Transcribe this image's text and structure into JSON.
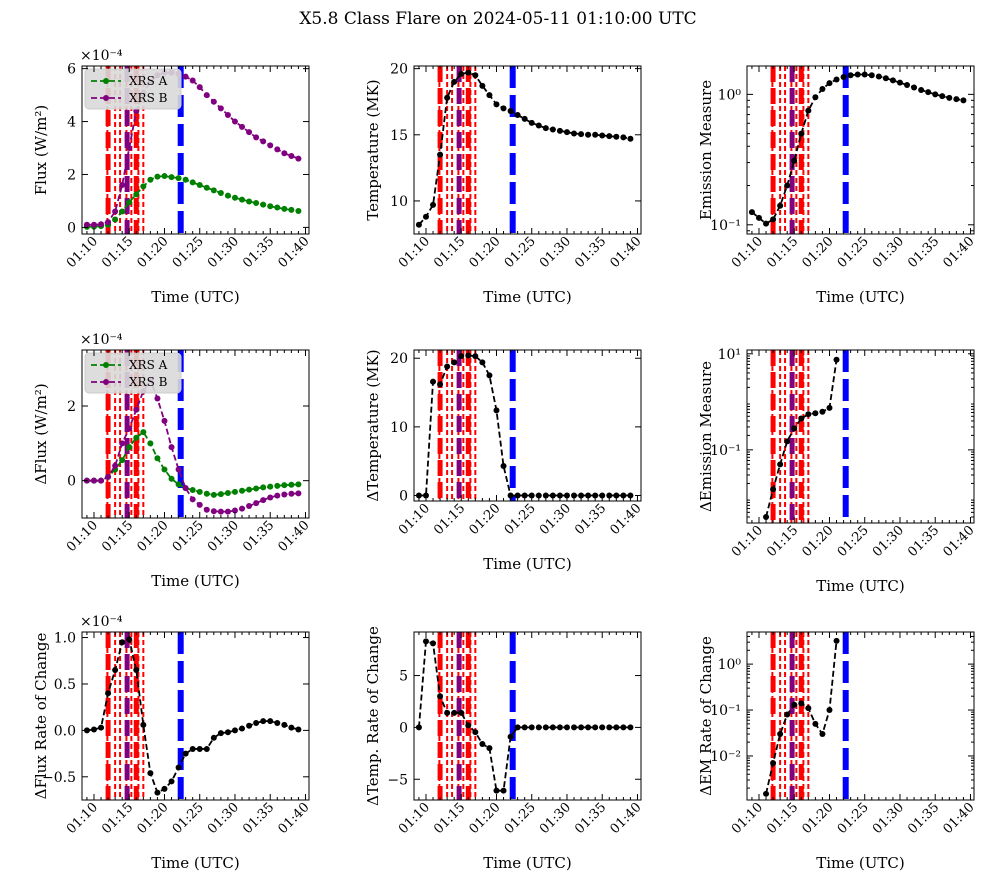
{
  "figure_title": "X5.8 Class Flare on 2024-05-11 01:10:00 UTC",
  "colors": {
    "xrs_a": "#008000",
    "xrs_b": "#800080",
    "black": "#000000",
    "red": "#ff0000",
    "blue": "#0000ff",
    "purple": "#800080"
  },
  "time_ticks": [
    "01:10",
    "01:15",
    "01:20",
    "01:25",
    "01:30",
    "01:35",
    "01:40"
  ],
  "time_tick_minutes": [
    10,
    15,
    20,
    25,
    30,
    35,
    40
  ],
  "xlim_minutes": [
    8.3,
    40.5
  ],
  "event_markers": {
    "red_thick": [
      12.0,
      16.0
    ],
    "red_dotted": [
      11.9,
      13.0,
      13.7,
      14.6,
      15.3,
      16.3,
      17.0
    ],
    "purple_thick": 14.7,
    "blue_thick": 22.3
  },
  "chart_data": [
    {
      "id": "flux",
      "type": "line",
      "scale": "linear",
      "ylabel": "Flux ($W/m^2$)",
      "ylabel_display": "Flux (W/m²)",
      "xlabel": "Time (UTC)",
      "multiplier": "×10⁻⁴",
      "ylim": [
        -0.25,
        6.1
      ],
      "yticks": [
        0,
        2,
        4,
        6
      ],
      "ytick_labels": [
        "0",
        "2",
        "4",
        "6"
      ],
      "legend": {
        "position": "upper-left",
        "entries": [
          "XRS A",
          "XRS B"
        ]
      },
      "series": [
        {
          "name": "XRS A",
          "color": "#008000",
          "x": [
            9,
            10,
            11,
            12,
            13,
            14,
            15,
            16,
            17,
            18,
            19,
            20,
            21,
            22,
            23,
            24,
            25,
            26,
            27,
            28,
            29,
            30,
            31,
            32,
            33,
            34,
            35,
            36,
            37,
            38,
            39
          ],
          "values": [
            0.02,
            0.03,
            0.05,
            0.1,
            0.3,
            0.6,
            0.95,
            1.25,
            1.55,
            1.8,
            1.92,
            1.94,
            1.9,
            1.86,
            1.8,
            1.7,
            1.6,
            1.5,
            1.4,
            1.3,
            1.2,
            1.12,
            1.05,
            0.98,
            0.92,
            0.86,
            0.8,
            0.75,
            0.7,
            0.66,
            0.62
          ]
        },
        {
          "name": "XRS B",
          "color": "#800080",
          "x": [
            9,
            10,
            11,
            12,
            13,
            14,
            15,
            16,
            17,
            18,
            19,
            20,
            21,
            22,
            23,
            24,
            25,
            26,
            27,
            28,
            29,
            30,
            31,
            32,
            33,
            34,
            35,
            36,
            37,
            38,
            39
          ],
          "values": [
            0.1,
            0.1,
            0.12,
            0.2,
            0.6,
            1.6,
            3.0,
            4.4,
            5.1,
            5.5,
            5.75,
            5.85,
            5.85,
            5.8,
            5.7,
            5.55,
            5.3,
            5.0,
            4.75,
            4.5,
            4.25,
            4.0,
            3.8,
            3.6,
            3.4,
            3.25,
            3.1,
            2.95,
            2.8,
            2.7,
            2.6
          ]
        }
      ]
    },
    {
      "id": "temp",
      "type": "line",
      "scale": "linear",
      "ylabel": "Temperature (MK)",
      "xlabel": "Time (UTC)",
      "ylim": [
        7.5,
        20.2
      ],
      "yticks": [
        10,
        15,
        20
      ],
      "ytick_labels": [
        "10",
        "15",
        "20"
      ],
      "series": [
        {
          "name": "Temperature",
          "color": "#000000",
          "x": [
            9,
            10,
            11,
            12,
            13,
            14,
            15,
            16,
            17,
            18,
            19,
            20,
            21,
            22,
            23,
            24,
            25,
            26,
            27,
            28,
            29,
            30,
            31,
            32,
            33,
            34,
            35,
            36,
            37,
            38,
            39
          ],
          "values": [
            8.2,
            8.8,
            9.7,
            13.5,
            17.8,
            19.0,
            19.6,
            19.7,
            19.5,
            18.7,
            18.0,
            17.3,
            17.0,
            16.8,
            16.5,
            16.2,
            15.9,
            15.7,
            15.5,
            15.4,
            15.3,
            15.2,
            15.1,
            15.05,
            15.0,
            15.0,
            14.95,
            14.9,
            14.85,
            14.8,
            14.7
          ]
        }
      ]
    },
    {
      "id": "em",
      "type": "line",
      "scale": "log",
      "ylabel": "Emission Measure",
      "xlabel": "Time (UTC)",
      "ylim": [
        0.085,
        1.65
      ],
      "yticks": [
        0.1,
        1
      ],
      "ytick_labels": [
        "10⁻¹",
        "10⁰"
      ],
      "series": [
        {
          "name": "Emission Measure",
          "color": "#000000",
          "x": [
            9,
            10,
            11,
            12,
            13,
            14,
            15,
            16,
            17,
            18,
            19,
            20,
            21,
            22,
            23,
            24,
            25,
            26,
            27,
            28,
            29,
            30,
            31,
            32,
            33,
            34,
            35,
            36,
            37,
            38,
            39
          ],
          "values": [
            0.125,
            0.113,
            0.102,
            0.11,
            0.14,
            0.2,
            0.31,
            0.5,
            0.75,
            0.95,
            1.1,
            1.22,
            1.3,
            1.36,
            1.4,
            1.42,
            1.42,
            1.4,
            1.37,
            1.33,
            1.28,
            1.23,
            1.18,
            1.13,
            1.08,
            1.04,
            1.0,
            0.97,
            0.94,
            0.92,
            0.9
          ]
        }
      ]
    },
    {
      "id": "dflux",
      "type": "line",
      "scale": "linear",
      "ylabel": "ΔFlux ($W/m^2$)",
      "ylabel_display": "ΔFlux (W/m²)",
      "xlabel": "Time (UTC)",
      "multiplier": "×10⁻⁴",
      "ylim": [
        -1.0,
        3.5
      ],
      "yticks": [
        0,
        2
      ],
      "ytick_labels": [
        "0",
        "2"
      ],
      "legend": {
        "position": "upper-left",
        "entries": [
          "XRS A",
          "XRS B"
        ]
      },
      "series": [
        {
          "name": "XRS A",
          "color": "#008000",
          "x": [
            9,
            10,
            11,
            12,
            13,
            14,
            15,
            16,
            17,
            18,
            19,
            20,
            21,
            22,
            23,
            24,
            25,
            26,
            27,
            28,
            29,
            30,
            31,
            32,
            33,
            34,
            35,
            36,
            37,
            38,
            39
          ],
          "values": [
            0,
            0,
            0,
            0.1,
            0.3,
            0.55,
            0.9,
            1.15,
            1.3,
            1.0,
            0.6,
            0.3,
            0.05,
            -0.1,
            -0.2,
            -0.25,
            -0.3,
            -0.35,
            -0.38,
            -0.36,
            -0.33,
            -0.3,
            -0.27,
            -0.24,
            -0.21,
            -0.18,
            -0.16,
            -0.14,
            -0.12,
            -0.11,
            -0.1
          ]
        },
        {
          "name": "XRS B",
          "color": "#800080",
          "x": [
            9,
            10,
            11,
            12,
            13,
            14,
            15,
            16,
            17,
            18,
            19,
            20,
            21,
            22,
            23,
            24,
            25,
            26,
            27,
            28,
            29,
            30,
            31,
            32,
            33,
            34,
            35,
            36,
            37,
            38,
            39
          ],
          "values": [
            0,
            0,
            0,
            0.1,
            0.4,
            1.0,
            1.4,
            1.9,
            2.4,
            2.7,
            2.2,
            1.6,
            0.9,
            0.3,
            -0.2,
            -0.5,
            -0.65,
            -0.78,
            -0.82,
            -0.83,
            -0.83,
            -0.8,
            -0.75,
            -0.68,
            -0.6,
            -0.52,
            -0.45,
            -0.4,
            -0.37,
            -0.35,
            -0.34
          ]
        }
      ]
    },
    {
      "id": "dtemp",
      "type": "line",
      "scale": "linear",
      "ylabel": "ΔTemperature (MK)",
      "xlabel": "Time (UTC)",
      "ylim": [
        -0.8,
        21.2
      ],
      "yticks": [
        0,
        10,
        20
      ],
      "ytick_labels": [
        "0",
        "10",
        "20"
      ],
      "series": [
        {
          "name": "ΔTemperature",
          "color": "#000000",
          "x": [
            9,
            10,
            11,
            12,
            13,
            14,
            15,
            16,
            17,
            18,
            19,
            20,
            21,
            22,
            23,
            24,
            25,
            26,
            27,
            28,
            29,
            30,
            31,
            32,
            33,
            34,
            35,
            36,
            37,
            38,
            39
          ],
          "values": [
            0,
            0,
            16.6,
            16.2,
            18.8,
            19.4,
            20.3,
            20.4,
            20.3,
            19.4,
            17.5,
            12.4,
            4.3,
            0,
            0,
            0,
            0,
            0,
            0,
            0,
            0,
            0,
            0,
            0,
            0,
            0,
            0,
            0,
            0,
            0,
            0
          ]
        }
      ]
    },
    {
      "id": "dem",
      "type": "line",
      "scale": "log",
      "ylabel": "ΔEmission Measure",
      "xlabel": "Time (UTC)",
      "ylim": [
        0.003,
        12
      ],
      "yticks": [
        0.1,
        10
      ],
      "ytick_labels": [
        "10⁻¹",
        "10¹"
      ],
      "series": [
        {
          "name": "ΔEmission Measure",
          "color": "#000000",
          "x": [
            11,
            12,
            13,
            14,
            15,
            16,
            17,
            18,
            19,
            20,
            21
          ],
          "values": [
            0.004,
            0.015,
            0.05,
            0.15,
            0.28,
            0.45,
            0.55,
            0.58,
            0.62,
            0.75,
            7.5
          ]
        }
      ]
    },
    {
      "id": "dflux_rate",
      "type": "line",
      "scale": "linear",
      "ylabel": "ΔFlux Rate of Change",
      "xlabel": "Time (UTC)",
      "multiplier": "×10⁻⁴",
      "ylim": [
        -0.75,
        1.06
      ],
      "yticks": [
        -0.5,
        0,
        0.5,
        1.0
      ],
      "ytick_labels": [
        "−0.5",
        "0.0",
        "0.5",
        "1.0"
      ],
      "series": [
        {
          "name": "ΔFlux Rate",
          "color": "#000000",
          "x": [
            9,
            10,
            11,
            12,
            13,
            14,
            15,
            16,
            17,
            18,
            19,
            20,
            21,
            22,
            23,
            24,
            25,
            26,
            27,
            28,
            29,
            30,
            31,
            32,
            33,
            34,
            35,
            36,
            37,
            38,
            39
          ],
          "values": [
            0,
            0.01,
            0.03,
            0.4,
            0.65,
            0.95,
            0.98,
            0.65,
            0.06,
            -0.46,
            -0.67,
            -0.63,
            -0.55,
            -0.4,
            -0.25,
            -0.2,
            -0.2,
            -0.2,
            -0.08,
            -0.03,
            -0.02,
            0,
            0.02,
            0.05,
            0.08,
            0.1,
            0.1,
            0.08,
            0.06,
            0.03,
            0.01
          ]
        }
      ]
    },
    {
      "id": "dtemp_rate",
      "type": "line",
      "scale": "linear",
      "ylabel": "ΔTemp. Rate of Change",
      "xlabel": "Time (UTC)",
      "ylim": [
        -7.0,
        9.2
      ],
      "yticks": [
        -5,
        0,
        5
      ],
      "ytick_labels": [
        "−5",
        "0",
        "5"
      ],
      "series": [
        {
          "name": "ΔTemp. Rate",
          "color": "#000000",
          "x": [
            9,
            10,
            11,
            12,
            13,
            14,
            15,
            16,
            17,
            18,
            19,
            20,
            21,
            22,
            23,
            24,
            25,
            26,
            27,
            28,
            29,
            30,
            31,
            32,
            33,
            34,
            35,
            36,
            37,
            38,
            39
          ],
          "values": [
            0,
            8.3,
            8.1,
            3.0,
            1.4,
            1.4,
            1.4,
            0.2,
            -0.45,
            -1.6,
            -2.0,
            -6.1,
            -6.1,
            -0.9,
            0,
            0,
            0,
            0,
            0,
            0,
            0,
            0,
            0,
            0,
            0,
            0,
            0,
            0,
            0,
            0,
            0
          ]
        }
      ]
    },
    {
      "id": "dem_rate",
      "type": "line",
      "scale": "log",
      "ylabel": "ΔEM Rate of Change",
      "xlabel": "Time (UTC)",
      "ylim": [
        0.0011,
        5
      ],
      "yticks": [
        0.01,
        0.1,
        1
      ],
      "ytick_labels": [
        "10⁻²",
        "10⁻¹",
        "10⁰"
      ],
      "series": [
        {
          "name": "ΔEM Rate",
          "color": "#000000",
          "x": [
            11,
            12,
            13,
            14,
            15,
            16,
            17,
            18,
            19,
            20,
            21
          ],
          "values": [
            0.0015,
            0.007,
            0.03,
            0.08,
            0.13,
            0.14,
            0.11,
            0.05,
            0.03,
            0.1,
            3.2
          ]
        }
      ]
    }
  ]
}
